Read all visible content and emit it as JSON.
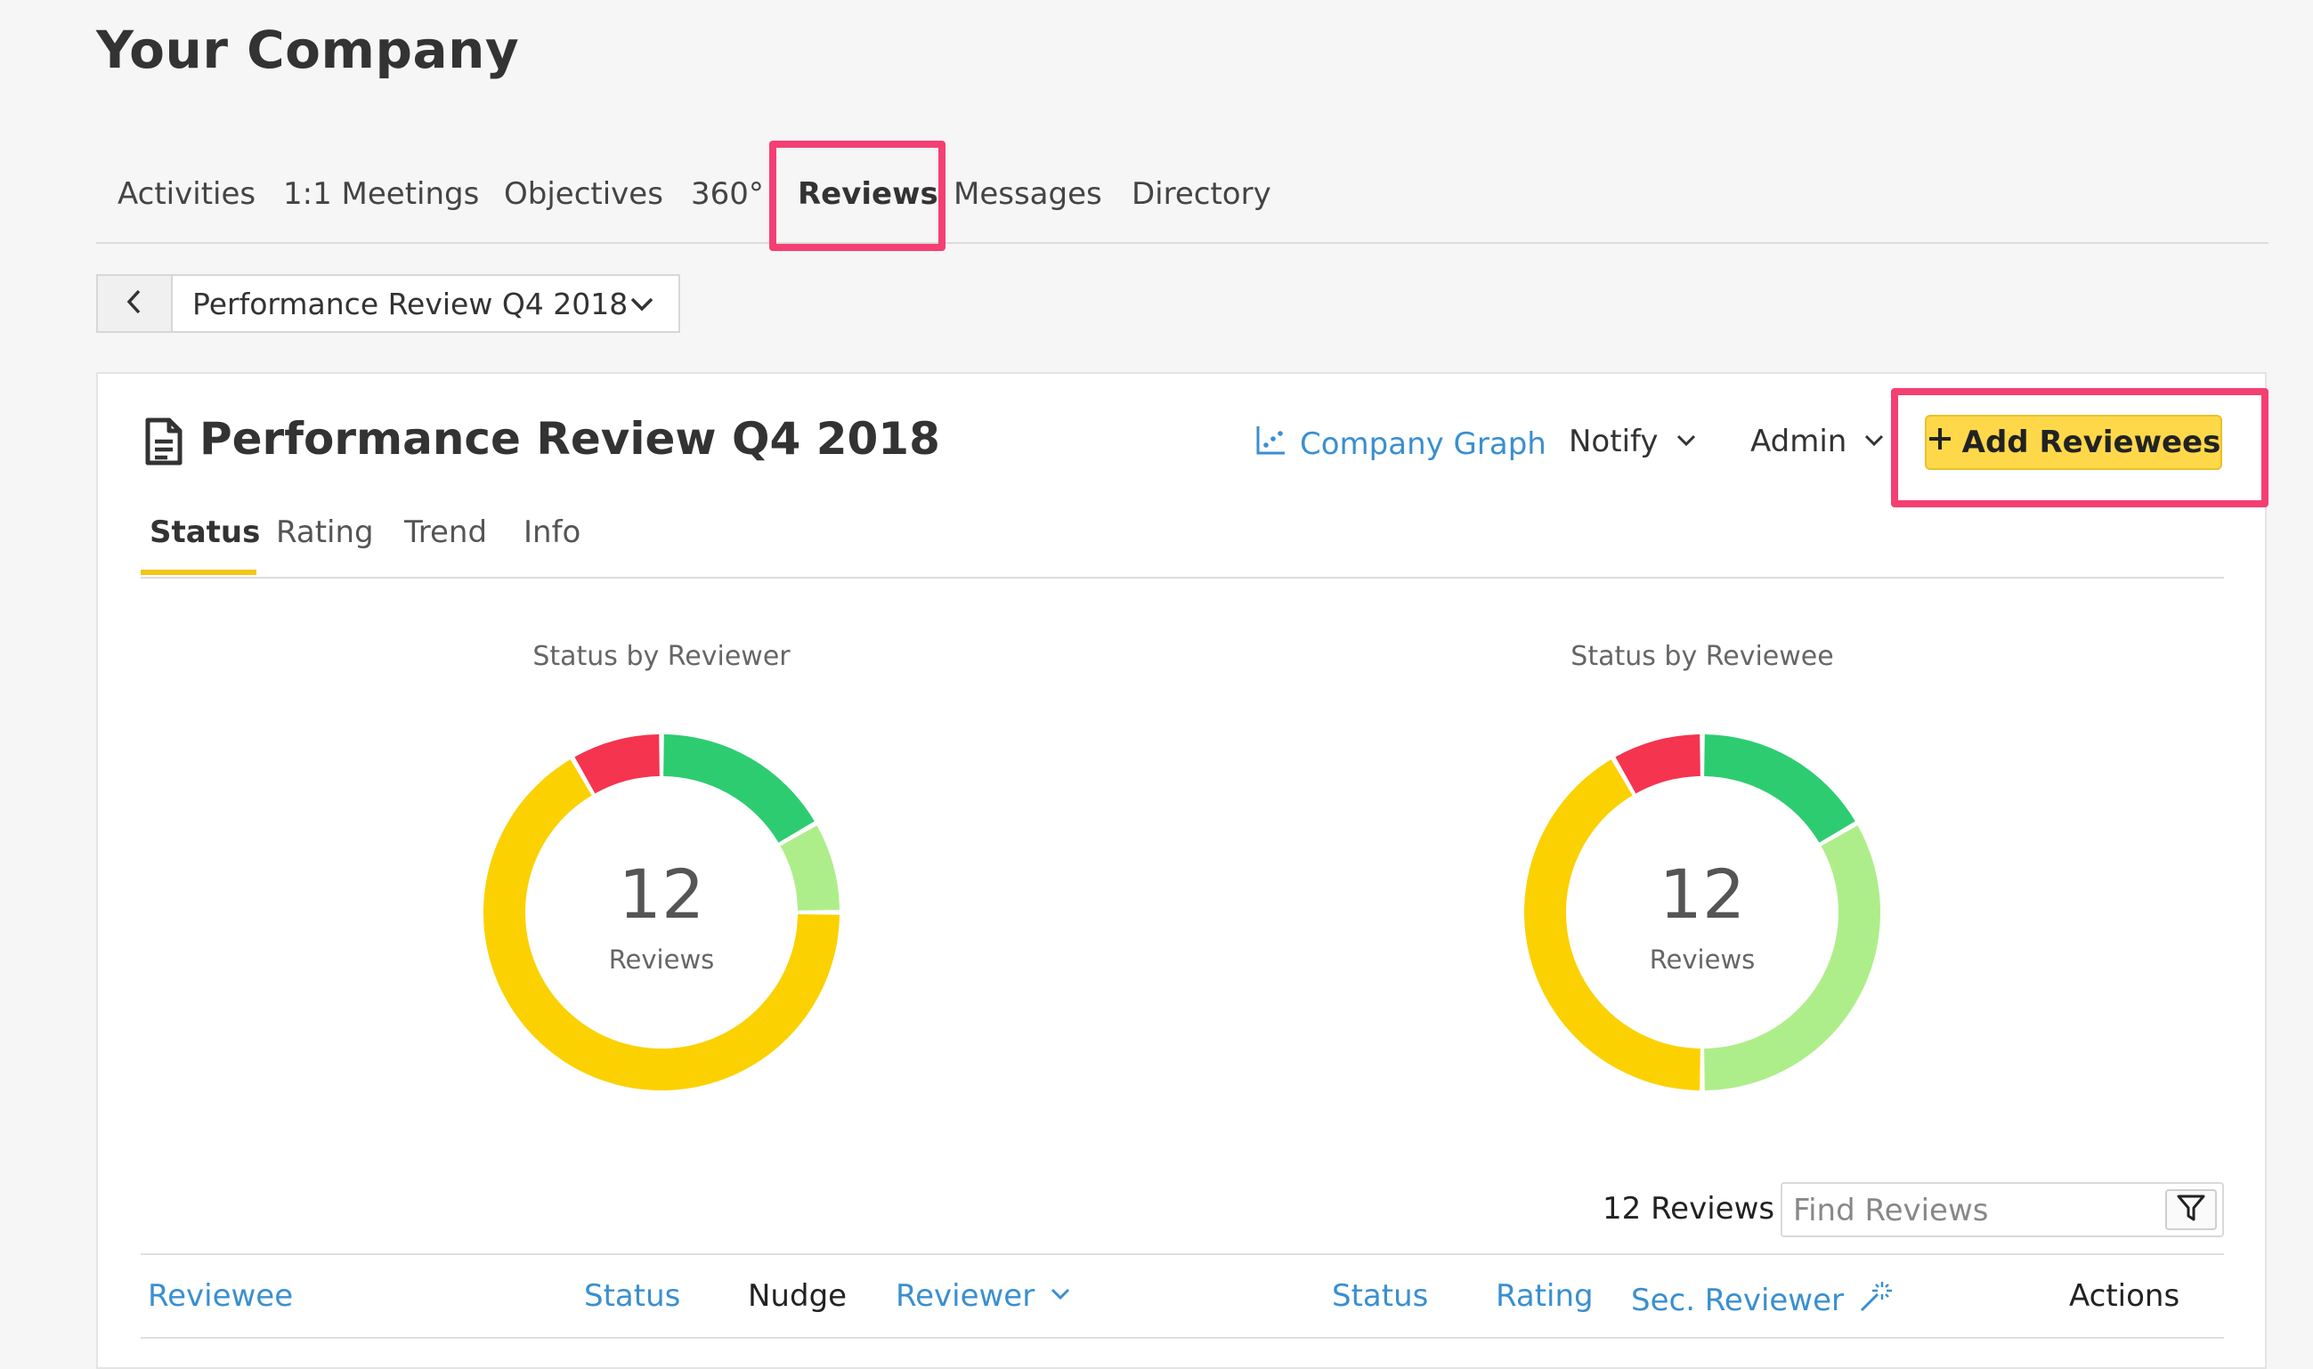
{
  "company": "Your Company",
  "nav": {
    "tabs": [
      "Activities",
      "1:1 Meetings",
      "Objectives",
      "360°",
      "Reviews",
      "Messages",
      "Directory"
    ],
    "active": "Reviews"
  },
  "selector": {
    "value": "Performance Review Q4 2018"
  },
  "card": {
    "title": "Performance Review Q4 2018",
    "graph_link": "Company Graph",
    "notify": "Notify",
    "admin": "Admin",
    "add_button": "Add Reviewees"
  },
  "subtabs": [
    "Status",
    "Rating",
    "Trend",
    "Info"
  ],
  "colors": {
    "green": "#2ecc71",
    "light_green": "#aeee8a",
    "yellow": "#fbd101",
    "red": "#f5344f",
    "accent": "#ffd84a",
    "highlight": "#f43f73",
    "link": "#3a8fd0"
  },
  "chart_data": [
    {
      "type": "pie",
      "title": "Status by Reviewer",
      "center_value": "12",
      "center_label": "Reviews",
      "slices": [
        {
          "color": "green",
          "value": 2
        },
        {
          "color": "light_green",
          "value": 1
        },
        {
          "color": "yellow",
          "value": 8
        },
        {
          "color": "red",
          "value": 1
        }
      ]
    },
    {
      "type": "pie",
      "title": "Status by Reviewee",
      "center_value": "12",
      "center_label": "Reviews",
      "slices": [
        {
          "color": "green",
          "value": 2
        },
        {
          "color": "light_green",
          "value": 4
        },
        {
          "color": "yellow",
          "value": 5
        },
        {
          "color": "red",
          "value": 1
        }
      ]
    }
  ],
  "table": {
    "count": "12 Reviews",
    "search_placeholder": "Find Reviews",
    "headers": {
      "reviewee": "Reviewee",
      "status1": "Status",
      "nudge": "Nudge",
      "reviewer": "Reviewer",
      "status2": "Status",
      "rating": "Rating",
      "sec_reviewer": "Sec. Reviewer",
      "actions": "Actions"
    }
  }
}
